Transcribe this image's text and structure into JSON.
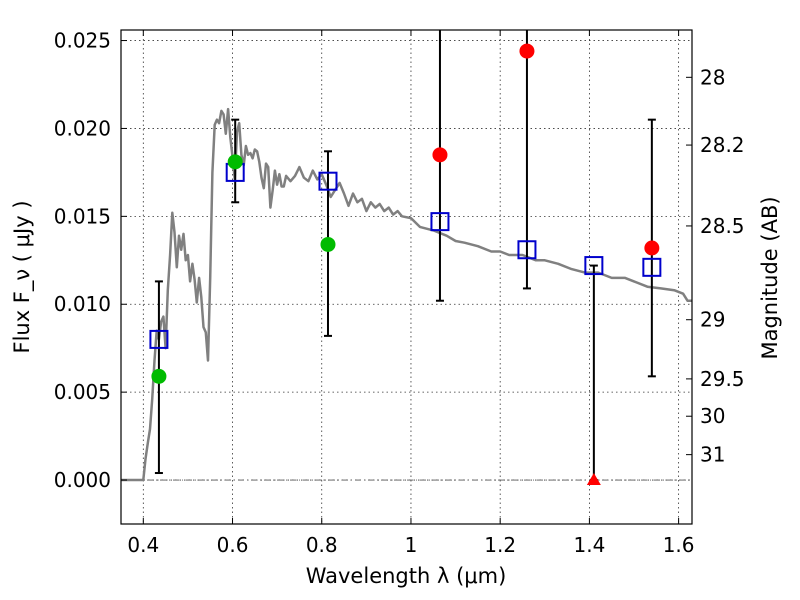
{
  "chart_data": {
    "type": "scatter",
    "xlabel": "Wavelength  λ (μm)",
    "ylabel": "Flux  F_ν  ( μJy )",
    "ylabel_right": "Magnitude (AB)",
    "xlim": [
      0.35,
      1.63
    ],
    "ylim": [
      -0.0025,
      0.0256
    ],
    "grid": true,
    "x_ticks": [
      {
        "value": 0.4,
        "label": "0.4"
      },
      {
        "value": 0.6,
        "label": "0.6"
      },
      {
        "value": 0.8,
        "label": "0.8"
      },
      {
        "value": 1.0,
        "label": "1"
      },
      {
        "value": 1.2,
        "label": "1.2"
      },
      {
        "value": 1.4,
        "label": "1.4"
      },
      {
        "value": 1.6,
        "label": "1.6"
      }
    ],
    "y_ticks": [
      {
        "value": 0.0,
        "label": "0.000"
      },
      {
        "value": 0.005,
        "label": "0.005"
      },
      {
        "value": 0.01,
        "label": "0.010"
      },
      {
        "value": 0.015,
        "label": "0.015"
      },
      {
        "value": 0.02,
        "label": "0.020"
      },
      {
        "value": 0.025,
        "label": "0.025"
      }
    ],
    "right_ticks": [
      {
        "mag": 28,
        "label": "28"
      },
      {
        "mag": 28.2,
        "label": "28.2"
      },
      {
        "mag": 28.5,
        "label": "28.5"
      },
      {
        "mag": 29,
        "label": "29"
      },
      {
        "mag": 29.5,
        "label": "29.5"
      },
      {
        "mag": 30,
        "label": "30"
      },
      {
        "mag": 31,
        "label": "31"
      }
    ],
    "model_spectrum": {
      "color": "#808080",
      "x": [
        0.35,
        0.39,
        0.395,
        0.4,
        0.405,
        0.41,
        0.415,
        0.42,
        0.425,
        0.43,
        0.435,
        0.44,
        0.445,
        0.45,
        0.455,
        0.46,
        0.465,
        0.47,
        0.475,
        0.48,
        0.485,
        0.49,
        0.495,
        0.5,
        0.505,
        0.51,
        0.515,
        0.52,
        0.525,
        0.53,
        0.535,
        0.54,
        0.545,
        0.55,
        0.555,
        0.56,
        0.565,
        0.57,
        0.575,
        0.58,
        0.585,
        0.59,
        0.595,
        0.6,
        0.605,
        0.61,
        0.615,
        0.62,
        0.625,
        0.63,
        0.635,
        0.64,
        0.645,
        0.65,
        0.655,
        0.66,
        0.665,
        0.67,
        0.675,
        0.68,
        0.685,
        0.69,
        0.695,
        0.7,
        0.705,
        0.71,
        0.715,
        0.72,
        0.73,
        0.74,
        0.75,
        0.76,
        0.77,
        0.78,
        0.79,
        0.8,
        0.81,
        0.82,
        0.83,
        0.84,
        0.85,
        0.86,
        0.87,
        0.88,
        0.89,
        0.9,
        0.91,
        0.92,
        0.93,
        0.94,
        0.95,
        0.96,
        0.97,
        0.98,
        1.0,
        1.02,
        1.05,
        1.08,
        1.1,
        1.12,
        1.15,
        1.18,
        1.2,
        1.22,
        1.25,
        1.28,
        1.3,
        1.33,
        1.36,
        1.39,
        1.42,
        1.45,
        1.48,
        1.5,
        1.53,
        1.56,
        1.59,
        1.61,
        1.62,
        1.63
      ],
      "y": [
        0.0,
        0.0,
        0.0,
        0.0,
        0.0012,
        0.0021,
        0.0029,
        0.0046,
        0.0068,
        0.0085,
        0.008,
        0.009,
        0.0093,
        0.0075,
        0.0108,
        0.0128,
        0.0152,
        0.0141,
        0.0121,
        0.0139,
        0.0131,
        0.014,
        0.0125,
        0.0128,
        0.0113,
        0.0123,
        0.0114,
        0.0101,
        0.0115,
        0.0104,
        0.0087,
        0.0084,
        0.0068,
        0.0115,
        0.0175,
        0.0202,
        0.0205,
        0.0203,
        0.021,
        0.0208,
        0.0197,
        0.0211,
        0.0195,
        0.0184,
        0.0171,
        0.0198,
        0.0203,
        0.0185,
        0.0179,
        0.019,
        0.0185,
        0.0186,
        0.0183,
        0.0188,
        0.0187,
        0.0181,
        0.0172,
        0.0166,
        0.018,
        0.0178,
        0.0155,
        0.0165,
        0.0176,
        0.0168,
        0.0174,
        0.0167,
        0.0167,
        0.0173,
        0.017,
        0.0173,
        0.0178,
        0.0172,
        0.017,
        0.0176,
        0.0171,
        0.0174,
        0.0168,
        0.0161,
        0.0165,
        0.0169,
        0.0163,
        0.0156,
        0.0163,
        0.0158,
        0.016,
        0.0153,
        0.0158,
        0.0155,
        0.0157,
        0.0153,
        0.0155,
        0.0151,
        0.0153,
        0.015,
        0.0149,
        0.0144,
        0.0142,
        0.0139,
        0.0136,
        0.0135,
        0.0133,
        0.013,
        0.013,
        0.0128,
        0.0128,
        0.0125,
        0.0125,
        0.0123,
        0.012,
        0.0118,
        0.0118,
        0.0115,
        0.0115,
        0.0113,
        0.011,
        0.0109,
        0.0108,
        0.0106,
        0.0102,
        0.0102
      ]
    },
    "model_photometry": {
      "marker": "open-square",
      "color": "#0000cc",
      "x": [
        0.435,
        0.606,
        0.814,
        1.065,
        1.26,
        1.41,
        1.54
      ],
      "y": [
        0.008,
        0.0175,
        0.017,
        0.0147,
        0.0131,
        0.0122,
        0.0121
      ]
    },
    "observed_green": {
      "marker": "filled-circle",
      "color": "#00bb00",
      "x": [
        0.435,
        0.606,
        0.814
      ],
      "y": [
        0.0059,
        0.0181,
        0.0134
      ],
      "err_low": [
        0.0004,
        0.0158,
        0.0082
      ],
      "err_high": [
        0.0113,
        0.0205,
        0.0187
      ]
    },
    "observed_red": {
      "marker": "filled-circle",
      "color": "#ff0000",
      "x": [
        1.065,
        1.26,
        1.54
      ],
      "y": [
        0.0185,
        0.0244,
        0.0132
      ],
      "err_low": [
        0.0102,
        0.0109,
        0.0059
      ],
      "err_high": [
        0.0256,
        0.0256,
        0.0205
      ]
    },
    "upper_limit": {
      "marker": "filled-triangle",
      "color": "#ff0000",
      "x": 1.41,
      "y": 0.0,
      "err_low": 0.0,
      "err_high": 0.0122
    }
  }
}
